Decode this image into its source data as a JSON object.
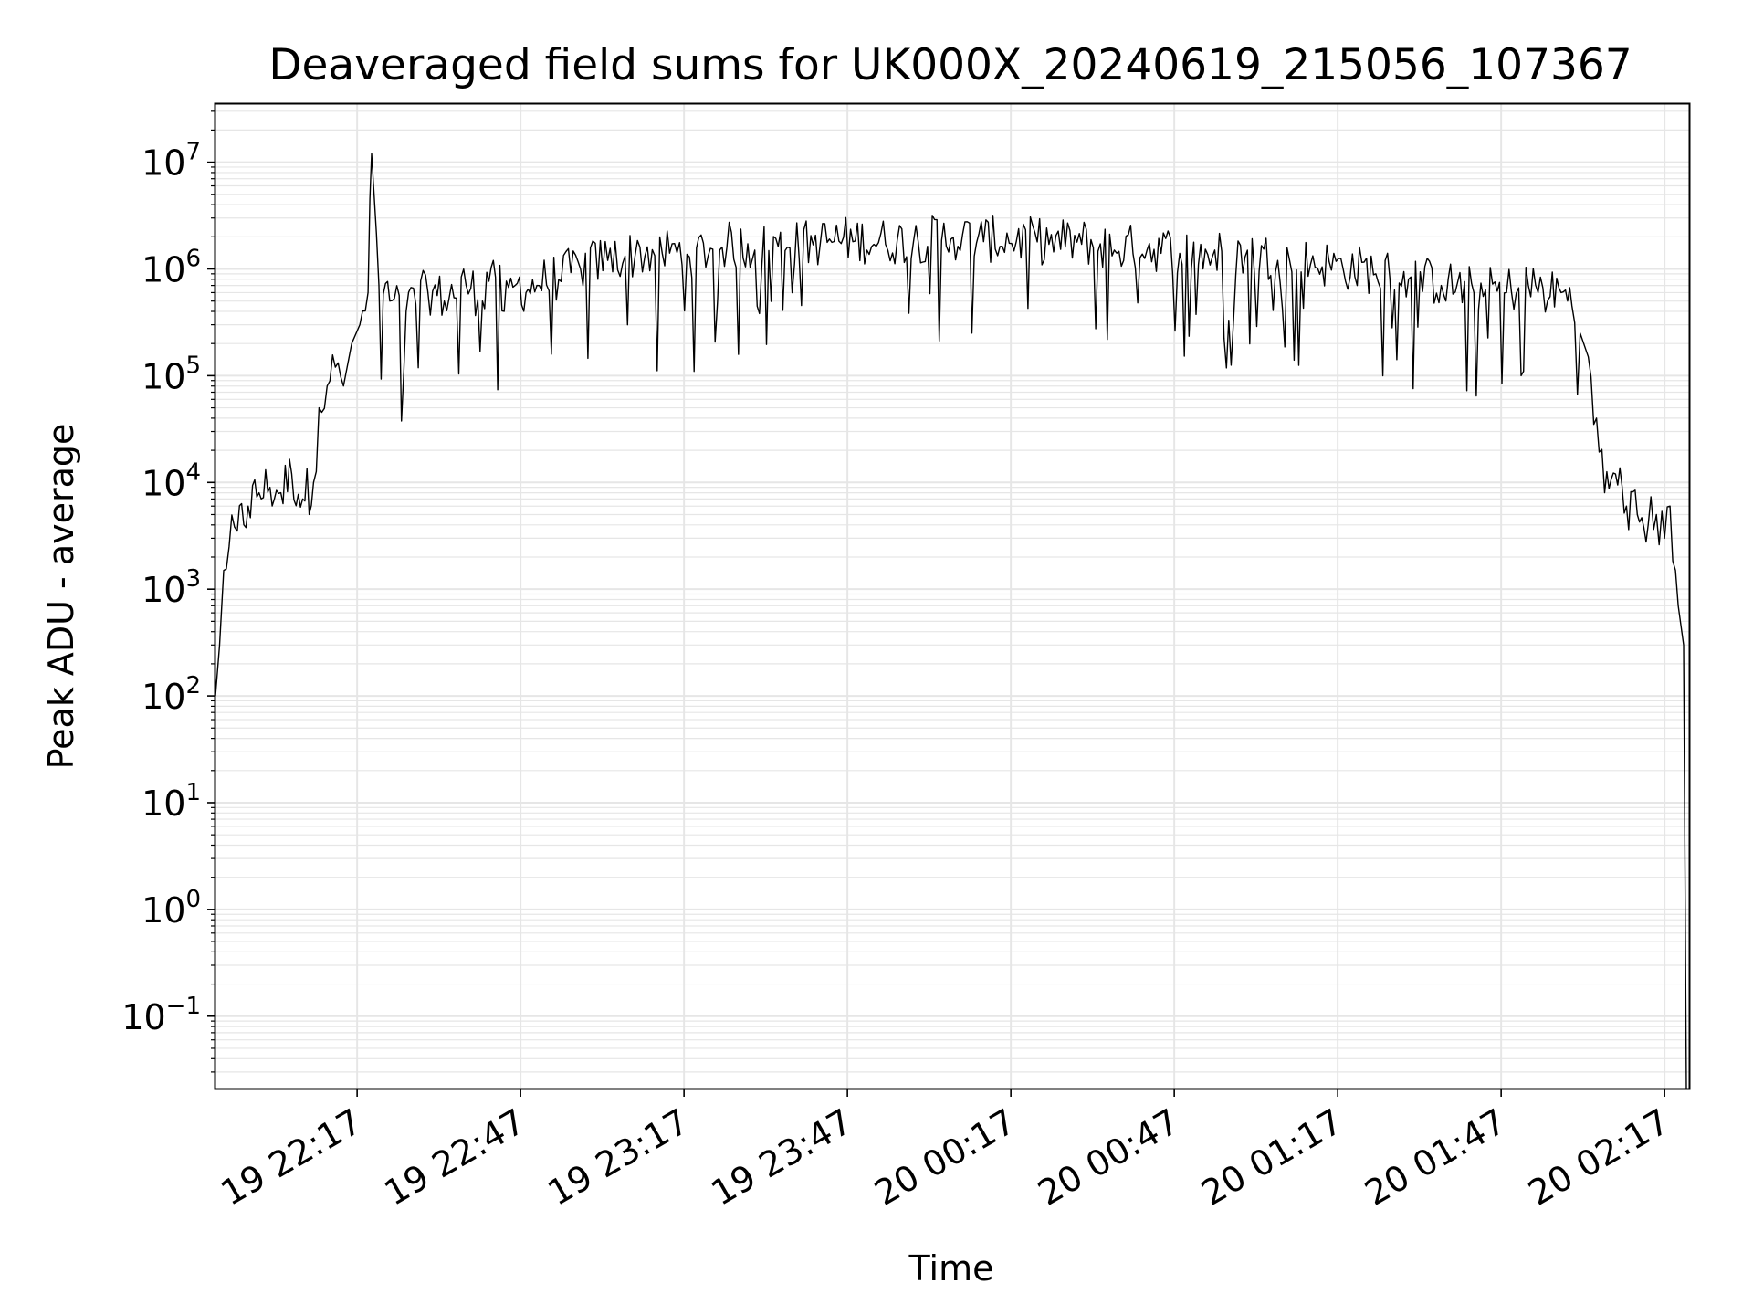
{
  "chart_data": {
    "type": "line",
    "title": "Deaveraged field sums for UK000X_20240619_215056_107367",
    "xlabel": "Time",
    "ylabel": "Peak ADU - average",
    "yscale": "log",
    "ylim": [
      0.021,
      35000000
    ],
    "xlim": [
      "2024-06-19T21:51:00",
      "2024-06-20T02:21:30"
    ],
    "grid": true,
    "line_color": "#000000",
    "grid_color": "#e6e6e6",
    "x_ticks": [
      {
        "value": "2024-06-19T22:17:00",
        "label": "19 22:17"
      },
      {
        "value": "2024-06-19T22:47:00",
        "label": "19 22:47"
      },
      {
        "value": "2024-06-19T23:17:00",
        "label": "19 23:17"
      },
      {
        "value": "2024-06-19T23:47:00",
        "label": "19 23:47"
      },
      {
        "value": "2024-06-20T00:17:00",
        "label": "20 00:17"
      },
      {
        "value": "2024-06-20T00:47:00",
        "label": "20 00:47"
      },
      {
        "value": "2024-06-20T01:17:00",
        "label": "20 01:17"
      },
      {
        "value": "2024-06-20T01:47:00",
        "label": "20 01:47"
      },
      {
        "value": "2024-06-20T02:17:00",
        "label": "20 02:17"
      }
    ],
    "y_ticks": [
      {
        "value": 0.1,
        "base": "10",
        "exp": "−1"
      },
      {
        "value": 1,
        "base": "10",
        "exp": "0"
      },
      {
        "value": 10,
        "base": "10",
        "exp": "1"
      },
      {
        "value": 100,
        "base": "10",
        "exp": "2"
      },
      {
        "value": 1000,
        "base": "10",
        "exp": "3"
      },
      {
        "value": 10000,
        "base": "10",
        "exp": "4"
      },
      {
        "value": 100000,
        "base": "10",
        "exp": "5"
      },
      {
        "value": 1000000,
        "base": "10",
        "exp": "6"
      },
      {
        "value": 10000000,
        "base": "10",
        "exp": "7"
      }
    ],
    "series": [
      {
        "x": [
          "2024-06-19T21:51:00",
          "2024-06-19T21:51:45",
          "2024-06-19T21:52:30",
          "2024-06-19T21:53:30",
          "2024-06-19T21:55:00",
          "2024-06-19T21:57:00",
          "2024-06-19T21:59:00",
          "2024-06-19T22:01:00",
          "2024-06-19T22:03:00",
          "2024-06-19T22:05:00",
          "2024-06-19T22:07:00",
          "2024-06-19T22:09:00",
          "2024-06-19T22:10:00",
          "2024-06-19T22:11:30",
          "2024-06-19T22:13:00",
          "2024-06-19T22:14:30",
          "2024-06-19T22:16:00",
          "2024-06-19T22:17:30",
          "2024-06-19T22:19:00",
          "2024-06-19T22:19:40",
          "2024-06-19T22:21:00",
          "2024-06-19T22:23:00",
          "2024-06-19T22:26:00",
          "2024-06-19T22:30:00",
          "2024-06-19T22:33:00",
          "2024-06-19T22:37:00",
          "2024-06-19T22:40:00",
          "2024-06-19T22:42:00",
          "2024-06-19T22:44:00",
          "2024-06-19T22:46:00",
          "2024-06-19T22:48:00",
          "2024-06-19T22:50:00",
          "2024-06-19T22:54:00",
          "2024-06-19T22:58:00",
          "2024-06-19T23:03:00",
          "2024-06-19T23:08:00",
          "2024-06-19T23:13:00",
          "2024-06-19T23:18:00",
          "2024-06-19T23:24:00",
          "2024-06-19T23:30:00",
          "2024-06-19T23:36:00",
          "2024-06-19T23:42:00",
          "2024-06-19T23:48:00",
          "2024-06-19T23:54:00",
          "2024-06-20T00:00:00",
          "2024-06-20T00:06:00",
          "2024-06-20T00:12:00",
          "2024-06-20T00:18:00",
          "2024-06-20T00:24:00",
          "2024-06-20T00:30:00",
          "2024-06-20T00:36:00",
          "2024-06-20T00:42:00",
          "2024-06-20T00:48:00",
          "2024-06-20T00:54:00",
          "2024-06-20T01:00:00",
          "2024-06-20T01:06:00",
          "2024-06-20T01:12:00",
          "2024-06-20T01:18:00",
          "2024-06-20T01:24:00",
          "2024-06-20T01:30:00",
          "2024-06-20T01:36:00",
          "2024-06-20T01:42:00",
          "2024-06-20T01:48:00",
          "2024-06-20T01:52:00",
          "2024-06-20T01:56:00",
          "2024-06-20T01:58:00",
          "2024-06-20T02:00:00",
          "2024-06-20T02:01:30",
          "2024-06-20T02:03:00",
          "2024-06-20T02:04:30",
          "2024-06-20T02:06:00",
          "2024-06-20T02:08:00",
          "2024-06-20T02:10:00",
          "2024-06-20T02:12:00",
          "2024-06-20T02:14:00",
          "2024-06-20T02:15:30",
          "2024-06-20T02:17:00",
          "2024-06-20T02:18:00",
          "2024-06-20T02:19:00",
          "2024-06-20T02:19:30",
          "2024-06-20T02:20:30",
          "2024-06-20T02:21:00"
        ],
        "values": [
          100,
          300,
          1500,
          2500,
          3500,
          6000,
          8000,
          9000,
          8000,
          12000,
          7000,
          10000,
          50000,
          80000,
          120000,
          80000,
          200000,
          300000,
          600000,
          12000000,
          700000,
          500000,
          400000,
          600000,
          500000,
          700000,
          500000,
          1200000,
          400000,
          700000,
          600000,
          700000,
          800000,
          1000000,
          1200000,
          1300000,
          1400000,
          1300000,
          1600000,
          1500000,
          1600000,
          1700000,
          1800000,
          1700000,
          1800000,
          1900000,
          1800000,
          1800000,
          1700000,
          1700000,
          1500000,
          1500000,
          1400000,
          1300000,
          1300000,
          1200000,
          1100000,
          1000000,
          900000,
          800000,
          700000,
          600000,
          600000,
          700000,
          550000,
          600000,
          450000,
          250000,
          150000,
          40000,
          8000,
          12000,
          6000,
          5000,
          4000,
          5000,
          3000,
          6000,
          1500,
          700,
          300,
          0.02
        ]
      }
    ]
  }
}
